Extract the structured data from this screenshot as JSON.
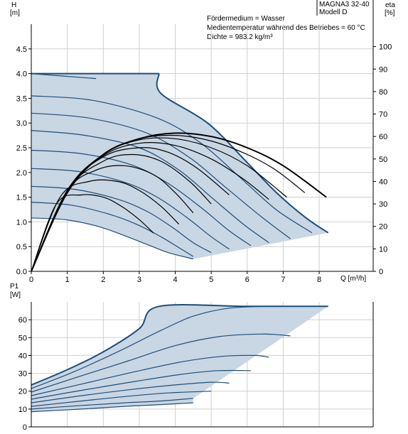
{
  "header": {
    "model_line1": "MAGNA3 32-40",
    "model_line2": "Modell D",
    "info": [
      "Fördermedium = Wasser",
      "Medientemperatur während des Betriebes = 60 °C",
      "Dichte = 983.2 kg/m³"
    ]
  },
  "chart_data": [
    {
      "type": "line",
      "title": "",
      "ylabel": "H",
      "yunit": "[m]",
      "y2label": "eta",
      "y2unit": "[%]",
      "xlabel": "Q [m³/h]",
      "xlim": [
        0,
        9.5
      ],
      "ylim": [
        0,
        5.0
      ],
      "y2lim": [
        0,
        110
      ],
      "grid": true,
      "xticks": [
        "0",
        "1",
        "2",
        "3",
        "4",
        "5",
        "6",
        "7",
        "8"
      ],
      "yticks": [
        "0.0",
        "0.5",
        "1.0",
        "1.5",
        "2.0",
        "2.5",
        "3.0",
        "3.5",
        "4.0",
        "4.5"
      ],
      "y2ticks": [
        "0",
        "10",
        "20",
        "30",
        "40",
        "50",
        "60",
        "70",
        "80",
        "90",
        "100"
      ],
      "colors": {
        "curve": "#1f4e79",
        "area": "#c9d6e4",
        "eta": "#000000"
      },
      "envelope": {
        "max_head": 4.0,
        "corner_q": 3.55,
        "max_q": 8.25,
        "max_q_head": 0.78,
        "low_end": [
          [
            4.5,
            0.25
          ],
          [
            8.25,
            0.78
          ]
        ]
      },
      "series_hq": [
        {
          "values": [
            [
              0,
              4.0
            ],
            [
              1.8,
              3.9
            ],
            [
              3.6,
              3.6
            ],
            [
              4.9,
              3.0
            ],
            [
              6.0,
              2.2
            ],
            [
              6.8,
              1.6
            ],
            [
              7.6,
              1.1
            ],
            [
              8.25,
              0.78
            ]
          ]
        },
        {
          "values": [
            [
              0,
              3.55
            ],
            [
              1.7,
              3.46
            ],
            [
              3.5,
              3.1
            ],
            [
              4.7,
              2.6
            ],
            [
              5.8,
              1.9
            ],
            [
              6.8,
              1.25
            ],
            [
              7.8,
              0.78
            ]
          ]
        },
        {
          "values": [
            [
              0,
              3.2
            ],
            [
              1.6,
              3.1
            ],
            [
              3.2,
              2.8
            ],
            [
              4.4,
              2.3
            ],
            [
              5.4,
              1.7
            ],
            [
              6.4,
              1.1
            ],
            [
              7.2,
              0.66
            ]
          ]
        },
        {
          "values": [
            [
              0,
              2.85
            ],
            [
              1.5,
              2.75
            ],
            [
              3.0,
              2.5
            ],
            [
              4.1,
              2.05
            ],
            [
              5.0,
              1.5
            ],
            [
              5.9,
              0.95
            ],
            [
              6.6,
              0.58
            ]
          ]
        },
        {
          "values": [
            [
              0,
              2.45
            ],
            [
              1.4,
              2.38
            ],
            [
              2.8,
              2.15
            ],
            [
              3.8,
              1.78
            ],
            [
              4.7,
              1.3
            ],
            [
              5.5,
              0.82
            ],
            [
              6.1,
              0.52
            ]
          ]
        },
        {
          "values": [
            [
              0,
              2.08
            ],
            [
              1.3,
              2.02
            ],
            [
              2.6,
              1.8
            ],
            [
              3.5,
              1.5
            ],
            [
              4.3,
              1.1
            ],
            [
              5.0,
              0.7
            ],
            [
              5.5,
              0.45
            ]
          ]
        },
        {
          "values": [
            [
              0,
              1.72
            ],
            [
              1.2,
              1.66
            ],
            [
              2.4,
              1.46
            ],
            [
              3.2,
              1.22
            ],
            [
              3.9,
              0.9
            ],
            [
              4.5,
              0.58
            ],
            [
              5.0,
              0.38
            ]
          ]
        },
        {
          "values": [
            [
              0,
              1.4
            ],
            [
              1.1,
              1.34
            ],
            [
              2.1,
              1.17
            ],
            [
              2.9,
              0.96
            ],
            [
              3.6,
              0.7
            ],
            [
              4.1,
              0.48
            ],
            [
              4.5,
              0.3
            ]
          ]
        },
        {
          "values": [
            [
              0,
              1.08
            ],
            [
              1.0,
              1.04
            ],
            [
              1.9,
              0.9
            ],
            [
              2.6,
              0.72
            ],
            [
              3.3,
              0.52
            ],
            [
              3.8,
              0.38
            ],
            [
              4.5,
              0.25
            ]
          ]
        }
      ],
      "series_eta": [
        {
          "values": [
            [
              0,
              0
            ],
            [
              1.0,
              35
            ],
            [
              2.0,
              52
            ],
            [
              3.0,
              59
            ],
            [
              4.0,
              61.5
            ],
            [
              5.0,
              60
            ],
            [
              6.0,
              55
            ],
            [
              7.0,
              47
            ],
            [
              8.2,
              33
            ]
          ]
        },
        {
          "values": [
            [
              0,
              0
            ],
            [
              1.0,
              36
            ],
            [
              2.0,
              52
            ],
            [
              3.0,
              59
            ],
            [
              4.0,
              60.5
            ],
            [
              5.0,
              58
            ],
            [
              6.0,
              52
            ],
            [
              6.8,
              45
            ],
            [
              7.6,
              35
            ]
          ]
        },
        {
          "values": [
            [
              0,
              0
            ],
            [
              1.0,
              36
            ],
            [
              2.0,
              52
            ],
            [
              3.0,
              58.5
            ],
            [
              4.0,
              59
            ],
            [
              5.0,
              55
            ],
            [
              6.0,
              47
            ],
            [
              7.1,
              33
            ]
          ]
        },
        {
          "values": [
            [
              0,
              0
            ],
            [
              1.0,
              36
            ],
            [
              2.0,
              51.5
            ],
            [
              3.0,
              57
            ],
            [
              4.0,
              56
            ],
            [
              5.0,
              50
            ],
            [
              5.9,
              41
            ],
            [
              6.6,
              32
            ]
          ]
        },
        {
          "values": [
            [
              0,
              0
            ],
            [
              1.0,
              36
            ],
            [
              2.0,
              51
            ],
            [
              3.0,
              55
            ],
            [
              3.8,
              53
            ],
            [
              4.6,
              46
            ],
            [
              5.5,
              34
            ]
          ]
        },
        {
          "values": [
            [
              0,
              0
            ],
            [
              1.0,
              36
            ],
            [
              2.0,
              49
            ],
            [
              2.8,
              52
            ],
            [
              3.6,
              49
            ],
            [
              4.4,
              40
            ],
            [
              5.0,
              30
            ]
          ]
        },
        {
          "values": [
            [
              0,
              0
            ],
            [
              1.0,
              35.5
            ],
            [
              1.8,
              45
            ],
            [
              2.6,
              47
            ],
            [
              3.4,
              43
            ],
            [
              4.0,
              35
            ],
            [
              4.5,
              26
            ]
          ]
        },
        {
          "values": [
            [
              0,
              0
            ],
            [
              0.8,
              33
            ],
            [
              1.6,
              40
            ],
            [
              2.4,
              40
            ],
            [
              3.0,
              36
            ],
            [
              3.6,
              29
            ],
            [
              4.1,
              21
            ]
          ]
        },
        {
          "values": [
            [
              0,
              0
            ],
            [
              0.7,
              30
            ],
            [
              1.4,
              34
            ],
            [
              2.0,
              33
            ],
            [
              2.5,
              29
            ],
            [
              3.0,
              23
            ],
            [
              3.4,
              17
            ]
          ]
        }
      ]
    },
    {
      "type": "line",
      "title": "",
      "ylabel": "P1",
      "yunit": "[W]",
      "xlim": [
        0,
        9.5
      ],
      "ylim": [
        0,
        70
      ],
      "grid": true,
      "yticks": [
        "0",
        "10",
        "20",
        "30",
        "40",
        "50",
        "60"
      ],
      "colors": {
        "curve": "#1f4e79",
        "area": "#c9d6e4"
      },
      "envelope": {
        "top": 67.5,
        "top_start_q": 3.55,
        "top_end_q": 8.25,
        "low_end": [
          [
            4.5,
            16
          ],
          [
            8.25,
            67.5
          ]
        ]
      },
      "series_p1": [
        {
          "values": [
            [
              0,
              23.5
            ],
            [
              1.0,
              32
            ],
            [
              2.0,
              42
            ],
            [
              3.0,
              55
            ],
            [
              3.55,
              67.5
            ],
            [
              6.0,
              67.5
            ],
            [
              8.25,
              67.5
            ]
          ]
        },
        {
          "values": [
            [
              0,
              21.5
            ],
            [
              1.2,
              31
            ],
            [
              2.5,
              43
            ],
            [
              3.6,
              54
            ],
            [
              4.5,
              62
            ],
            [
              5.5,
              66.5
            ],
            [
              6.6,
              67.5
            ]
          ]
        },
        {
          "values": [
            [
              0,
              19.5
            ],
            [
              1.3,
              28
            ],
            [
              2.7,
              37
            ],
            [
              4.0,
              45.5
            ],
            [
              5.2,
              50.5
            ],
            [
              6.4,
              52
            ],
            [
              7.2,
              51
            ]
          ]
        },
        {
          "values": [
            [
              0,
              17.5
            ],
            [
              1.4,
              24
            ],
            [
              2.9,
              31
            ],
            [
              4.2,
              36.5
            ],
            [
              5.3,
              39.5
            ],
            [
              6.2,
              40
            ],
            [
              6.6,
              39
            ]
          ]
        },
        {
          "values": [
            [
              0,
              15.5
            ],
            [
              1.4,
              20.5
            ],
            [
              2.9,
              25.5
            ],
            [
              4.2,
              29.5
            ],
            [
              5.2,
              31.5
            ],
            [
              6.1,
              31.5
            ]
          ]
        },
        {
          "values": [
            [
              0,
              13.5
            ],
            [
              1.4,
              17.5
            ],
            [
              2.8,
              21
            ],
            [
              4.0,
              23.5
            ],
            [
              5.0,
              25
            ],
            [
              5.5,
              24.5
            ]
          ]
        },
        {
          "values": [
            [
              0,
              11.5
            ],
            [
              1.4,
              14.5
            ],
            [
              2.6,
              17
            ],
            [
              3.8,
              19
            ],
            [
              5.0,
              20
            ]
          ]
        },
        {
          "values": [
            [
              0,
              10
            ],
            [
              1.4,
              12
            ],
            [
              2.6,
              13.5
            ],
            [
              3.6,
              14.5
            ],
            [
              4.5,
              16
            ]
          ]
        },
        {
          "values": [
            [
              0,
              8.5
            ],
            [
              1.4,
              10
            ],
            [
              2.6,
              11.5
            ],
            [
              3.6,
              12.5
            ],
            [
              4.5,
              13.5
            ]
          ]
        }
      ]
    }
  ]
}
